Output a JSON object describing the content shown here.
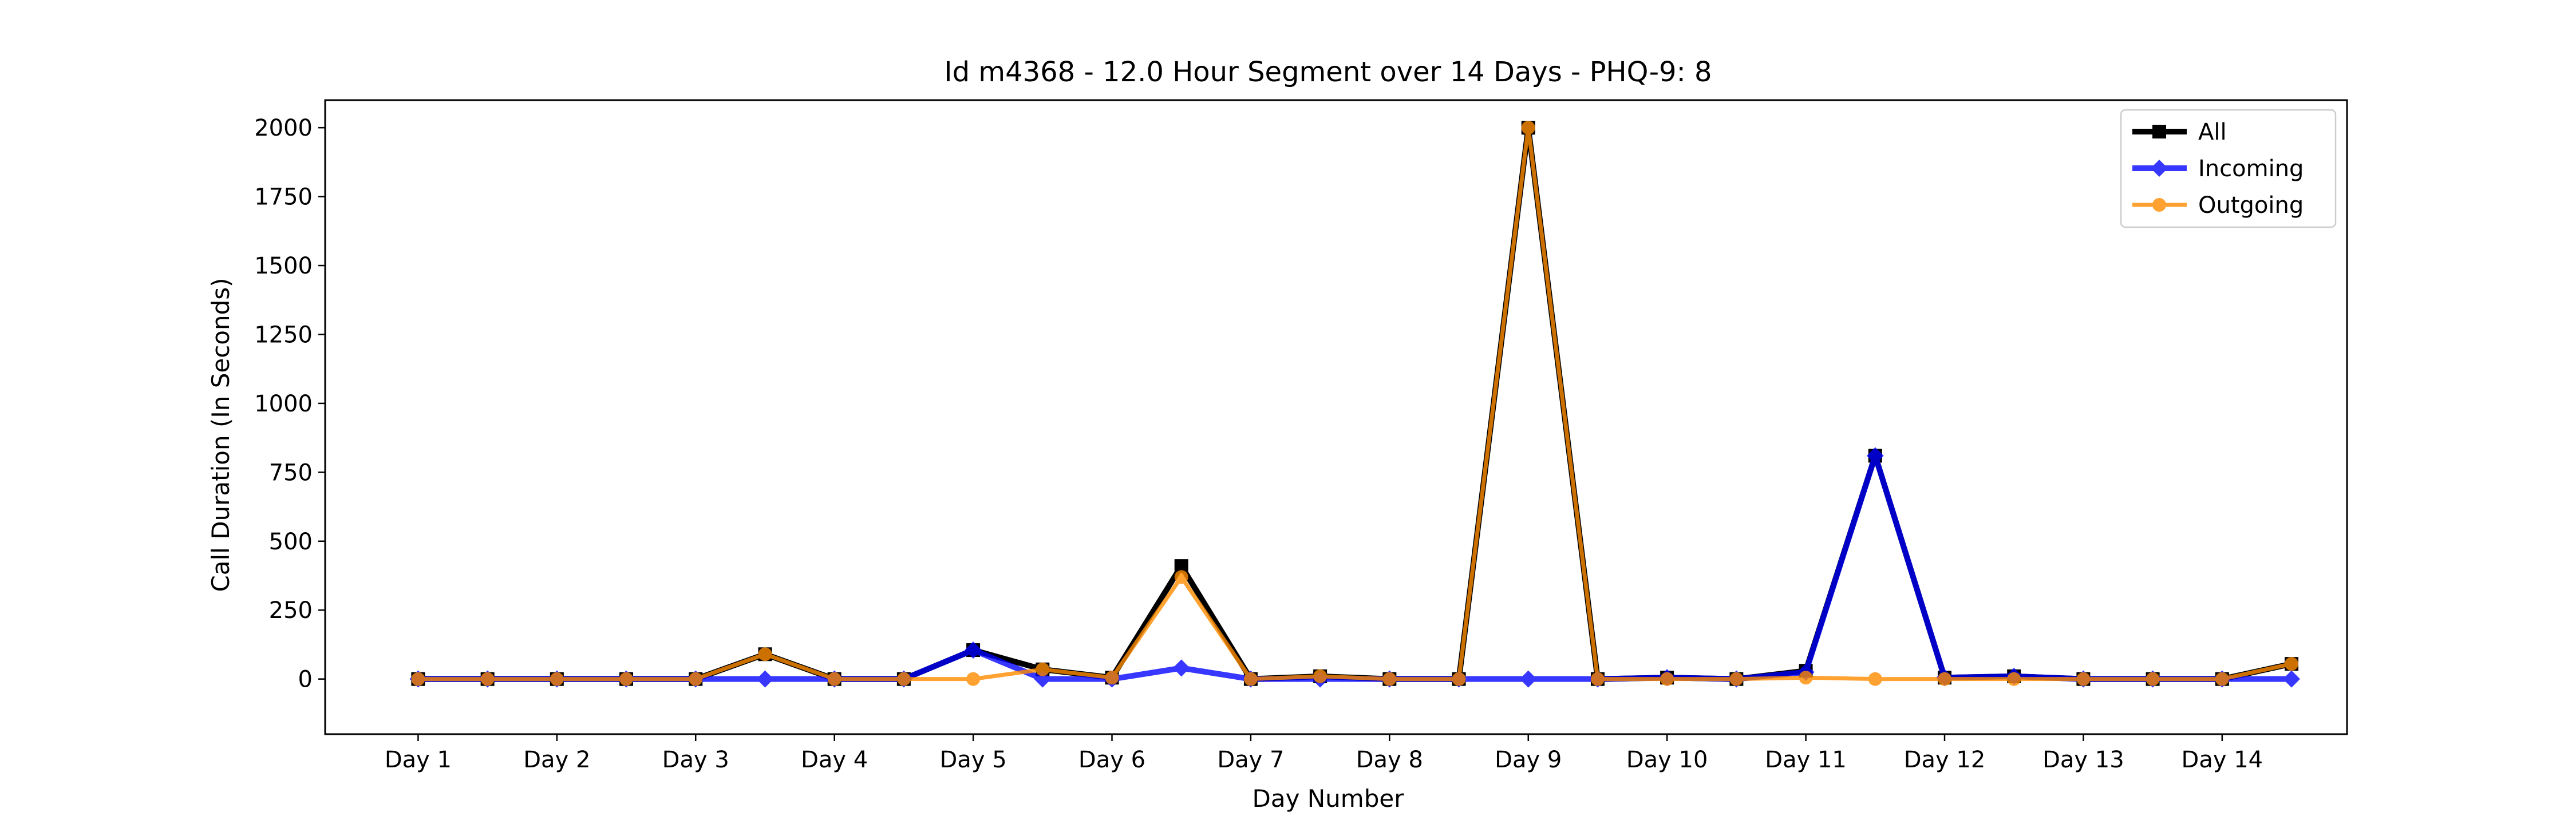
{
  "chart_data": {
    "type": "line",
    "title": "Id m4368 - 12.0 Hour Segment over 14 Days - PHQ-9: 8",
    "xlabel": "Day Number",
    "ylabel": "Call Duration (In Seconds)",
    "ylim": [
      -200,
      2100
    ],
    "yticks": [
      0,
      250,
      500,
      750,
      1000,
      1250,
      1500,
      1750,
      2000
    ],
    "ytick_labels": [
      "0",
      "250",
      "500",
      "750",
      "1000",
      "1250",
      "1500",
      "1750",
      "2000"
    ],
    "xlim": [
      0.33,
      14.9
    ],
    "xticks": [
      1,
      2,
      3,
      4,
      5,
      6,
      7,
      8,
      9,
      10,
      11,
      12,
      13,
      14
    ],
    "xtick_labels": [
      "Day 1",
      "Day 2",
      "Day 3",
      "Day 4",
      "Day 5",
      "Day 6",
      "Day 7",
      "Day 8",
      "Day 9",
      "Day 10",
      "Day 11",
      "Day 12",
      "Day 13",
      "Day 14"
    ],
    "x": [
      1,
      1.5,
      2,
      2.5,
      3,
      3.5,
      4,
      4.5,
      5,
      5.5,
      6,
      6.5,
      7,
      7.5,
      8,
      8.5,
      9,
      9.5,
      10,
      10.5,
      11,
      11.5,
      12,
      12.5,
      13,
      13.5,
      14,
      14.5
    ],
    "legend_position": "top-right",
    "series": [
      {
        "name": "All",
        "color": "#000000",
        "marker": "square",
        "values": [
          0,
          0,
          0,
          0,
          0,
          90,
          0,
          0,
          105,
          35,
          5,
          410,
          0,
          10,
          0,
          0,
          2000,
          0,
          5,
          0,
          30,
          810,
          5,
          10,
          0,
          0,
          0,
          55
        ]
      },
      {
        "name": "Incoming",
        "color": "#0000ff",
        "marker": "diamond",
        "values": [
          0,
          0,
          0,
          0,
          0,
          0,
          0,
          0,
          105,
          0,
          0,
          40,
          0,
          0,
          0,
          0,
          0,
          0,
          5,
          0,
          25,
          810,
          5,
          10,
          0,
          0,
          0,
          0
        ]
      },
      {
        "name": "Outgoing",
        "color": "#ff8c00",
        "marker": "circle",
        "values": [
          0,
          0,
          0,
          0,
          0,
          90,
          0,
          0,
          0,
          35,
          5,
          370,
          0,
          10,
          0,
          0,
          2000,
          0,
          0,
          0,
          5,
          0,
          0,
          0,
          0,
          0,
          0,
          55
        ]
      }
    ]
  }
}
